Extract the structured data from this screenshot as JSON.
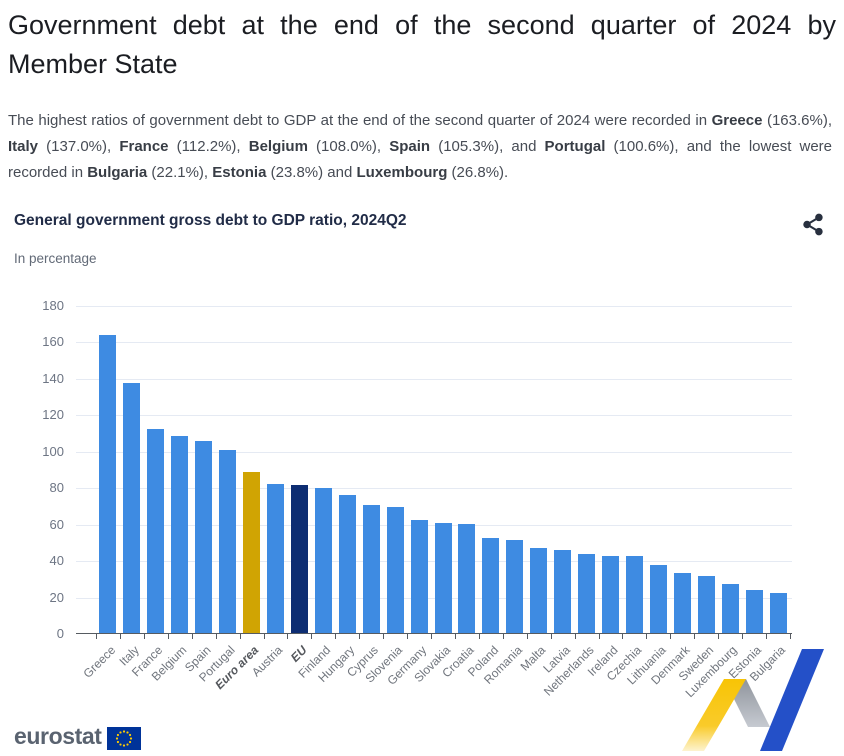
{
  "page": {
    "title": "Government debt at the end of the second quarter of 2024 by Member State"
  },
  "intro": {
    "segments": [
      {
        "text": "The highest ratios of government debt to GDP at the end of the second quarter of 2024 were recorded in ",
        "bold": false
      },
      {
        "text": "Greece",
        "bold": true
      },
      {
        "text": " (163.6%), ",
        "bold": false
      },
      {
        "text": "Italy",
        "bold": true
      },
      {
        "text": " (137.0%), ",
        "bold": false
      },
      {
        "text": "France",
        "bold": true
      },
      {
        "text": " (112.2%), ",
        "bold": false
      },
      {
        "text": "Belgium",
        "bold": true
      },
      {
        "text": " (108.0%), ",
        "bold": false
      },
      {
        "text": "Spain",
        "bold": true
      },
      {
        "text": " (105.3%), and ",
        "bold": false
      },
      {
        "text": "Portugal",
        "bold": true
      },
      {
        "text": " (100.6%), and the lowest were recorded in ",
        "bold": false
      },
      {
        "text": "Bulgaria",
        "bold": true
      },
      {
        "text": " (22.1%), ",
        "bold": false
      },
      {
        "text": "Estonia",
        "bold": true
      },
      {
        "text": " (23.8%) and ",
        "bold": false
      },
      {
        "text": "Luxembourg",
        "bold": true
      },
      {
        "text": " (26.8%).",
        "bold": false
      }
    ]
  },
  "chart": {
    "title": "General government gross debt to GDP ratio, 2024Q2",
    "subtitle": "In percentage",
    "share_icon": "share-icon",
    "share_icon_color": "#28303f"
  },
  "chart_data": {
    "type": "bar",
    "title": "General government gross debt to GDP ratio, 2024Q2",
    "subtitle": "In percentage",
    "ylabel": "In percentage",
    "ylim": [
      0,
      180
    ],
    "yticks": [
      0,
      20,
      40,
      60,
      80,
      100,
      120,
      140,
      160,
      180
    ],
    "grid": true,
    "legend": "none",
    "categories": [
      "Greece",
      "Italy",
      "France",
      "Belgium",
      "Spain",
      "Portugal",
      "Euro area",
      "Austria",
      "EU",
      "Finland",
      "Hungary",
      "Cyprus",
      "Slovenia",
      "Germany",
      "Slovakia",
      "Croatia",
      "Poland",
      "Romania",
      "Malta",
      "Latvia",
      "Netherlands",
      "Ireland",
      "Czechia",
      "Lithuania",
      "Denmark",
      "Sweden",
      "Luxembourg",
      "Estonia",
      "Bulgaria"
    ],
    "values": [
      163.6,
      137.0,
      112.2,
      108.0,
      105.3,
      100.6,
      88.1,
      81.8,
      81.5,
      79.8,
      75.5,
      70.4,
      69.2,
      61.9,
      60.3,
      59.7,
      51.9,
      50.9,
      46.4,
      45.8,
      43.2,
      42.4,
      42.3,
      37.3,
      33.0,
      31.2,
      26.8,
      23.8,
      22.1
    ],
    "emphasized": [
      "Euro area",
      "EU"
    ],
    "colors": {
      "bar_default": "#3e8be2",
      "bar_euro_area": "#d0a403",
      "bar_eu": "#0d2d72",
      "gridline": "#e5eaf3",
      "axis": "#565b61"
    }
  },
  "footer": {
    "logo_text": "eurostat",
    "logo_color": "#5a6370",
    "flag_blue": "#003399",
    "flag_star_yellow": "#ffcc00",
    "ribbon_yellow": "#f8c405",
    "ribbon_gray": "#9aa0a8",
    "ribbon_blue": "#2450c8"
  }
}
